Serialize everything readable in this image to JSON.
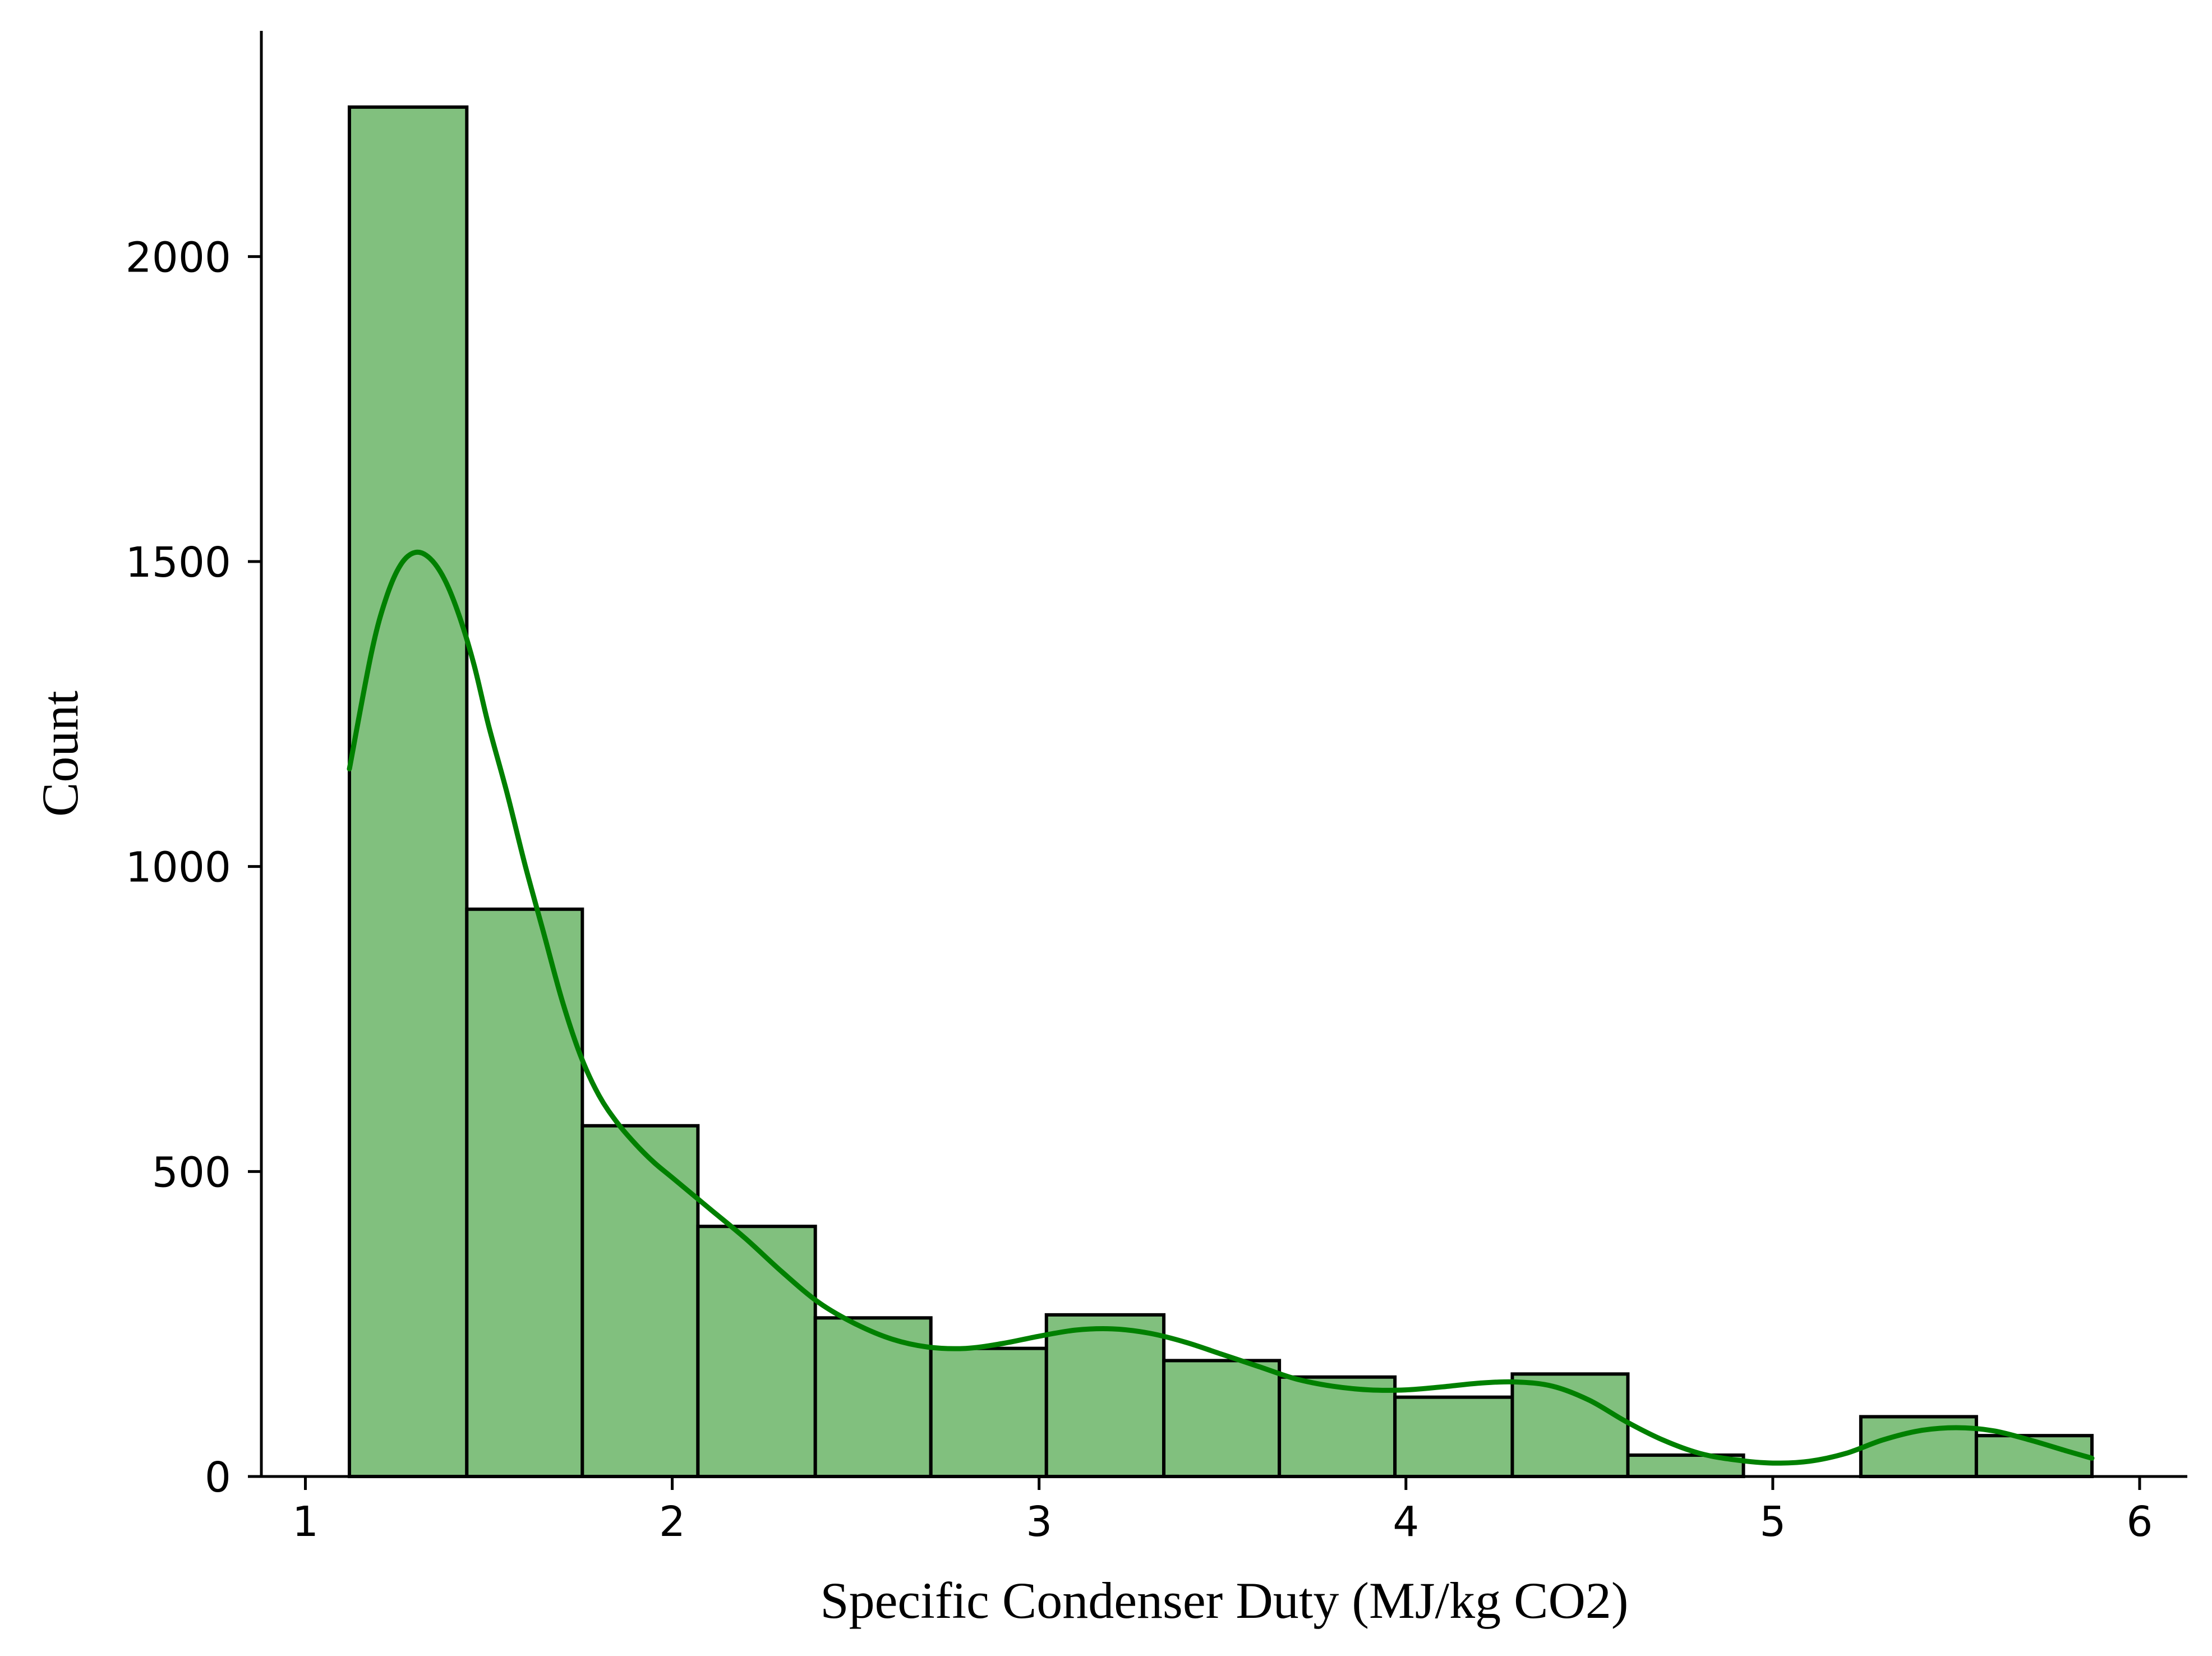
{
  "chart_data": {
    "type": "bar",
    "subtype": "histogram_with_kde",
    "xlabel": "Specific Condenser Duty (MJ/kg CO2)",
    "ylabel": "Count",
    "xlim": [
      0.88,
      6.13
    ],
    "ylim": [
      0,
      2370
    ],
    "xticks": [
      1,
      2,
      3,
      4,
      5,
      6
    ],
    "yticks": [
      0,
      500,
      1000,
      1500,
      2000
    ],
    "grid": false,
    "legend": "none",
    "bar_color": "#81c07e",
    "edge_color": "#000000",
    "kde_color": "#008000",
    "bins": [
      {
        "x0": 1.12,
        "x1": 1.44,
        "count": 2245
      },
      {
        "x0": 1.44,
        "x1": 1.755,
        "count": 930
      },
      {
        "x0": 1.755,
        "x1": 2.07,
        "count": 575
      },
      {
        "x0": 2.07,
        "x1": 2.39,
        "count": 410
      },
      {
        "x0": 2.39,
        "x1": 2.705,
        "count": 260
      },
      {
        "x0": 2.705,
        "x1": 3.02,
        "count": 210
      },
      {
        "x0": 3.02,
        "x1": 3.34,
        "count": 265
      },
      {
        "x0": 3.34,
        "x1": 3.655,
        "count": 190
      },
      {
        "x0": 3.655,
        "x1": 3.97,
        "count": 163
      },
      {
        "x0": 3.97,
        "x1": 4.29,
        "count": 130
      },
      {
        "x0": 4.29,
        "x1": 4.605,
        "count": 168
      },
      {
        "x0": 4.605,
        "x1": 4.92,
        "count": 35
      },
      {
        "x0": 4.92,
        "x1": 5.24,
        "count": 0
      },
      {
        "x0": 5.24,
        "x1": 5.555,
        "count": 98
      },
      {
        "x0": 5.555,
        "x1": 5.87,
        "count": 67
      }
    ],
    "kde": {
      "x": [
        1.12,
        1.18,
        1.22,
        1.26,
        1.3,
        1.34,
        1.38,
        1.42,
        1.46,
        1.5,
        1.55,
        1.6,
        1.65,
        1.7,
        1.75,
        1.8,
        1.85,
        1.9,
        1.95,
        2.0,
        2.1,
        2.2,
        2.3,
        2.4,
        2.5,
        2.6,
        2.7,
        2.8,
        2.9,
        3.0,
        3.1,
        3.2,
        3.3,
        3.4,
        3.5,
        3.6,
        3.7,
        3.8,
        3.9,
        4.0,
        4.1,
        4.2,
        4.3,
        4.4,
        4.5,
        4.6,
        4.7,
        4.8,
        4.9,
        5.0,
        5.1,
        5.2,
        5.3,
        5.4,
        5.5,
        5.6,
        5.7,
        5.8,
        5.87
      ],
      "y": [
        1160,
        1350,
        1440,
        1495,
        1515,
        1505,
        1470,
        1410,
        1330,
        1230,
        1120,
        1000,
        890,
        780,
        690,
        625,
        580,
        545,
        515,
        490,
        440,
        390,
        335,
        285,
        250,
        225,
        212,
        210,
        218,
        230,
        240,
        242,
        235,
        220,
        200,
        180,
        160,
        148,
        142,
        142,
        147,
        153,
        155,
        148,
        125,
        90,
        60,
        38,
        27,
        22,
        25,
        38,
        60,
        75,
        80,
        75,
        60,
        42,
        30
      ]
    }
  }
}
